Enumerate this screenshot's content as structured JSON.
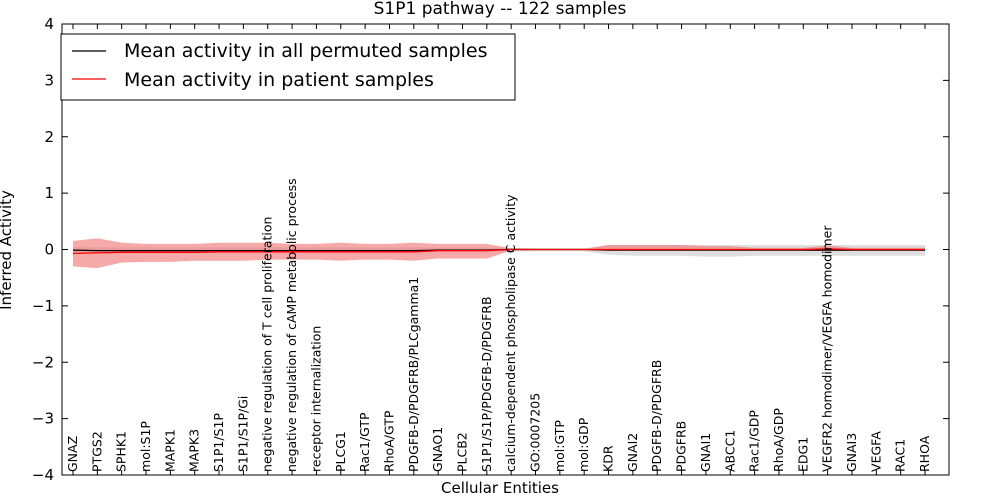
{
  "chart_data": {
    "type": "line",
    "title": "S1P1 pathway -- 122 samples",
    "xlabel": "Cellular Entities",
    "ylabel": "Inferred Activity",
    "ylim": [
      -4,
      4
    ],
    "yticks": [
      -4,
      -3,
      -2,
      -1,
      0,
      1,
      2,
      3,
      4
    ],
    "ytick_labels": [
      "−4",
      "−3",
      "−2",
      "−1",
      "0",
      "1",
      "2",
      "3",
      "4"
    ],
    "grid": false,
    "legend_position": "top-left",
    "categories": [
      "GNAZ",
      "PTGS2",
      "SPHK1",
      "mol:S1P",
      "MAPK1",
      "MAPK3",
      "S1P1/S1P",
      "S1P1/S1P/Gi",
      "negative regulation of T cell proliferation",
      "negative regulation of cAMP metabolic process",
      "receptor internalization",
      "PLCG1",
      "Rac1/GTP",
      "RhoA/GTP",
      "PDGFB-D/PDGFRB/PLCgamma1",
      "GNAO1",
      "PLCB2",
      "S1P1/S1P/PDGFB-D/PDGFRB",
      "calcium-dependent phospholipase C activity",
      "GO:0007205",
      "mol:GTP",
      "mol:GDP",
      "KDR",
      "GNAI2",
      "PDGFB-D/PDGFRB",
      "PDGFRB",
      "GNAI1",
      "ABCC1",
      "Rac1/GDP",
      "RhoA/GDP",
      "EDG1",
      "VEGFR2 homodimer/VEGFA homodimer",
      "GNAI3",
      "VEGFA",
      "RAC1",
      "RHOA"
    ],
    "series": [
      {
        "name": "Mean activity in all permuted samples",
        "color": "#000000",
        "values": [
          -0.01,
          -0.02,
          -0.02,
          -0.02,
          -0.02,
          -0.02,
          -0.02,
          -0.02,
          -0.02,
          -0.02,
          -0.02,
          -0.02,
          -0.02,
          -0.02,
          -0.02,
          -0.01,
          -0.01,
          -0.01,
          0,
          0,
          0,
          0,
          -0.01,
          -0.01,
          -0.01,
          -0.01,
          -0.01,
          -0.01,
          -0.01,
          -0.01,
          -0.01,
          -0.01,
          -0.01,
          -0.01,
          -0.01,
          -0.01
        ],
        "upper": [
          0.04,
          0.04,
          0.04,
          0.04,
          0.04,
          0.04,
          0.04,
          0.04,
          0.04,
          0.04,
          0.04,
          0.04,
          0.04,
          0.04,
          0.04,
          0.03,
          0.03,
          0.03,
          0.03,
          0.02,
          0.02,
          0.02,
          0.08,
          0.08,
          0.08,
          0.08,
          0.08,
          0.08,
          0.08,
          0.08,
          0.08,
          0.08,
          0.08,
          0.08,
          0.08,
          0.08
        ],
        "lower": [
          -0.06,
          -0.06,
          -0.06,
          -0.06,
          -0.06,
          -0.06,
          -0.06,
          -0.06,
          -0.06,
          -0.06,
          -0.06,
          -0.06,
          -0.06,
          -0.06,
          -0.06,
          -0.05,
          -0.05,
          -0.05,
          -0.03,
          -0.03,
          -0.03,
          -0.03,
          -0.09,
          -0.11,
          -0.11,
          -0.11,
          -0.13,
          -0.13,
          -0.11,
          -0.11,
          -0.11,
          -0.11,
          -0.11,
          -0.11,
          -0.11,
          -0.11
        ]
      },
      {
        "name": "Mean activity in patient samples",
        "color": "#ff0000",
        "values": [
          -0.07,
          -0.06,
          -0.05,
          -0.05,
          -0.05,
          -0.05,
          -0.04,
          -0.04,
          -0.04,
          -0.04,
          -0.04,
          -0.04,
          -0.04,
          -0.04,
          -0.04,
          -0.02,
          -0.02,
          -0.02,
          0,
          0,
          0,
          0,
          0,
          0,
          0,
          0,
          0,
          0,
          0,
          0,
          0,
          0.01,
          0,
          0,
          0,
          0
        ],
        "upper": [
          0.15,
          0.2,
          0.12,
          0.1,
          0.1,
          0.1,
          0.12,
          0.12,
          0.12,
          0.1,
          0.1,
          0.12,
          0.1,
          0.1,
          0.12,
          0.1,
          0.1,
          0.1,
          0.02,
          0.01,
          0.01,
          0.01,
          0.08,
          0.08,
          0.08,
          0.08,
          0.06,
          0.06,
          0.03,
          0.03,
          0.03,
          0.07,
          0.03,
          0.03,
          0.03,
          0.03
        ],
        "lower": [
          -0.3,
          -0.33,
          -0.23,
          -0.22,
          -0.22,
          -0.2,
          -0.2,
          -0.2,
          -0.18,
          -0.18,
          -0.18,
          -0.2,
          -0.18,
          -0.18,
          -0.2,
          -0.16,
          -0.16,
          -0.16,
          -0.02,
          -0.01,
          -0.01,
          -0.01,
          -0.01,
          -0.02,
          -0.02,
          -0.02,
          -0.02,
          -0.02,
          -0.02,
          -0.02,
          -0.02,
          -0.03,
          -0.02,
          -0.02,
          -0.02,
          -0.02
        ]
      }
    ]
  }
}
